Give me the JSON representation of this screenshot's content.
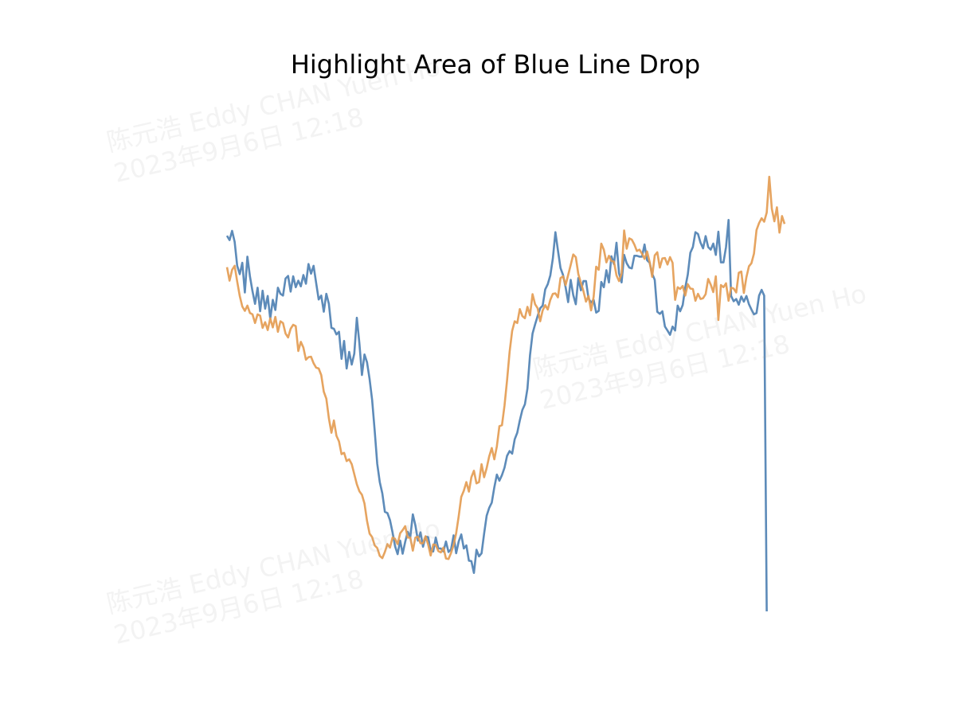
{
  "chart_data": {
    "type": "line",
    "title": "Highlight Area of Blue Line Drop",
    "axes_visible": false,
    "grid": false,
    "series": [
      {
        "color": "#4f81b3",
        "values": [
          75.5,
          74.5,
          76.6,
          74.1,
          68.6,
          66.7,
          69.3,
          62.5,
          70.7,
          66.2,
          62.8,
          59.9,
          63.6,
          58.2,
          62.9,
          58.8,
          61.7,
          56.5,
          60.8,
          58.5,
          63.6,
          62.2,
          61.8,
          65.7,
          66.3,
          62.7,
          66.2,
          63.7,
          65.2,
          63.9,
          66.5,
          64.5,
          69,
          66.8,
          68.6,
          64.7,
          60.9,
          61.8,
          58.1,
          62.2,
          59.9,
          54.4,
          54.2,
          52.9,
          53.5,
          47.3,
          51.4,
          45.1,
          48.9,
          46,
          48.5,
          56.7,
          50.9,
          43.6,
          48.3,
          46.5,
          42.7,
          37.9,
          30.9,
          23.3,
          19.1,
          16.5,
          12.3,
          12,
          10.4,
          7.6,
          4.4,
          2.6,
          5.7,
          2.7,
          5.4,
          7.7,
          6.5,
          11.7,
          9.2,
          5.7,
          7.6,
          4.3,
          6.6,
          6.5,
          3.4,
          3.2,
          6.4,
          3.9,
          3.9,
          3.2,
          5.5,
          3.1,
          3.7,
          6.9,
          2.8,
          5.5,
          7.1,
          3.9,
          4.6,
          1.1,
          1,
          -1.7,
          3.6,
          2.1,
          2.8,
          7.3,
          11.4,
          13.2,
          14.4,
          17.9,
          20.8,
          19.4,
          20.7,
          22.4,
          25.1,
          26.2,
          25.6,
          28.9,
          30.4,
          33.2,
          35.6,
          36.9,
          40.5,
          48.1,
          53.1,
          55.2,
          57.1,
          58.9,
          59.5,
          63.2,
          64.4,
          66.4,
          70.3,
          76.3,
          72.1,
          68.1,
          66.5,
          63.7,
          60.3,
          65.4,
          61.9,
          59.8,
          65.8,
          63,
          65.1,
          65.1,
          61.1,
          60.2,
          60.8,
          57.9,
          58.3,
          64.9,
          63.7,
          67.6,
          64.8,
          70.8,
          69,
          73.9,
          66.9,
          64.8,
          71.1,
          69.2,
          68.2,
          68,
          70.9,
          70.9,
          70.7,
          70.7,
          73.5,
          69.9,
          69.3,
          66.8,
          65.4,
          58.1,
          57.6,
          58.2,
          54.7,
          53.8,
          52.8,
          54.7,
          53.8,
          59.5,
          58.2,
          59.6,
          63.6,
          66.6,
          71.6,
          72.9,
          76.3,
          75.9,
          73.9,
          72.6,
          75.4,
          72.9,
          72.3,
          73.7,
          71.1,
          76.4,
          69.4,
          69.4,
          72.9,
          79.1,
          61.7,
          60.5,
          61,
          59.7,
          61.6,
          60.4,
          61.7,
          59.8,
          58.6,
          57.5,
          57.8,
          61.8,
          63.1,
          61.8,
          -10.5
        ]
      },
      {
        "color": "#e49c52",
        "values": [
          68.3,
          65.2,
          67.7,
          68.6,
          65,
          61.7,
          59.3,
          58.3,
          59.5,
          57.8,
          57.5,
          55.5,
          57.5,
          57.2,
          54.4,
          55.7,
          53.9,
          56.6,
          54.5,
          56.9,
          53.5,
          55.9,
          55.5,
          53.1,
          52.2,
          54.2,
          55.1,
          54.8,
          49.1,
          51.2,
          49.9,
          47.1,
          47.7,
          47.8,
          46.3,
          45.3,
          45.1,
          43.6,
          39.8,
          38.2,
          33.7,
          30.4,
          33.2,
          29.7,
          28.4,
          25.5,
          25.8,
          23.9,
          24.3,
          23.2,
          20.9,
          18.6,
          17,
          16.2,
          14.2,
          10.2,
          7.3,
          6.5,
          4.6,
          4,
          2.2,
          1.7,
          3.1,
          4.9,
          4.1,
          6.4,
          6.1,
          4.9,
          7.4,
          8.1,
          9,
          6.4,
          6.4,
          3.4,
          6.4,
          6.6,
          5.1,
          5.1,
          6.7,
          4.8,
          2.3,
          4.8,
          4.7,
          3.3,
          3,
          4.1,
          1.6,
          1.5,
          2.9,
          4.7,
          7.4,
          11.3,
          15.7,
          17.1,
          19.1,
          16.9,
          20.2,
          21.7,
          18.8,
          19.1,
          23.2,
          20.2,
          22.3,
          25,
          26.9,
          24.3,
          27.3,
          31.9,
          32.1,
          36.6,
          42.4,
          48.9,
          53.7,
          55.9,
          55.5,
          58.7,
          57.1,
          56.6,
          59.2,
          57.3,
          62.1,
          59.8,
          58.9,
          55.9,
          58.4,
          59.6,
          58.6,
          60.8,
          62.2,
          62.3,
          61.4,
          65.8,
          66.2,
          64.2,
          66.5,
          68.8,
          71.2,
          70.6,
          66.7,
          64.7,
          62.8,
          60.4,
          61.7,
          58.4,
          61.5,
          68.4,
          67.7,
          73.7,
          72.3,
          69.4,
          70.9,
          69.7,
          69.6,
          66.4,
          65.1,
          66.8,
          76.7,
          72.5,
          74.9,
          74.6,
          73.5,
          72,
          72.3,
          71.4,
          70.2,
          71.9,
          69.5,
          66.1,
          71,
          71.7,
          68.2,
          70.3,
          70.4,
          68.9,
          70.6,
          69.3,
          60.8,
          63.7,
          63.3,
          64,
          61.8,
          64.4,
          63.4,
          63.3,
          60.6,
          62.2,
          61,
          61.2,
          62.1,
          65.6,
          64.3,
          62.6,
          66.2,
          56.2,
          64.2,
          63.7,
          64.6,
          60.6,
          63.6,
          63.4,
          62.5,
          67,
          67.3,
          62.4,
          66,
          68.5,
          69.2,
          71.4,
          76.8,
          78.4,
          79.5,
          78.7,
          80.8,
          89,
          81.7,
          78.8,
          82,
          76.2,
          80,
          78.2
        ]
      }
    ]
  },
  "watermark": {
    "lines": [
      "陈元浩 Eddy CHAN Yuen Ho",
      "2023年9月6日 12:18"
    ]
  }
}
